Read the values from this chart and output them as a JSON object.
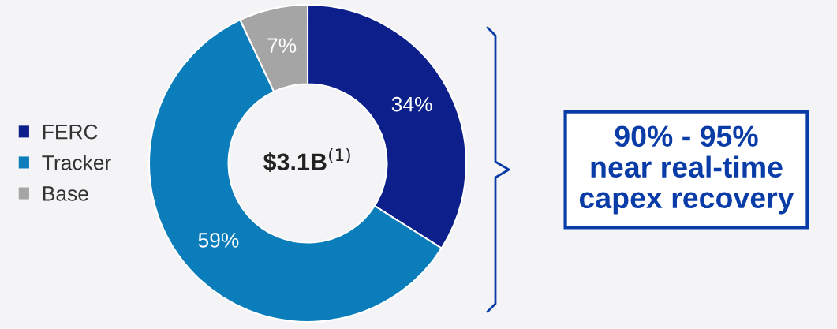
{
  "chart_data": {
    "type": "donut",
    "categories": [
      "FERC",
      "Tracker",
      "Base"
    ],
    "values": [
      34,
      59,
      7
    ],
    "colors": [
      "#0c1f8a",
      "#0b7dba",
      "#a5a5a5"
    ],
    "value_labels": [
      "34%",
      "59%",
      "7%"
    ],
    "legend": "left",
    "annotations": [
      "$3.1B$^{(1)}$",
      "90% - 95%\nnear real-time\ncapex recovery"
    ]
  }
}
